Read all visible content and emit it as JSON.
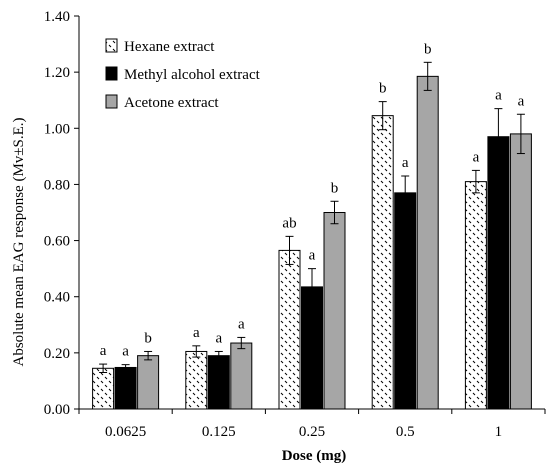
{
  "chart_data": {
    "type": "bar",
    "xlabel": "Dose (mg)",
    "ylabel": "Absolute mean EAG response (Mv±S.E.)",
    "ylim": [
      0,
      1.4
    ],
    "yticks": [
      "0.00",
      "0.20",
      "0.40",
      "0.60",
      "0.80",
      "1.00",
      "1.20",
      "1.40"
    ],
    "categories": [
      "0.0625",
      "0.125",
      "0.25",
      "0.5",
      "1"
    ],
    "legend_position": "top-left",
    "grid": false,
    "series": [
      {
        "name": "Hexane extract",
        "pattern": "dotted-white",
        "values": [
          0.145,
          0.205,
          0.565,
          1.045,
          0.81
        ],
        "errors": [
          0.015,
          0.02,
          0.05,
          0.05,
          0.04
        ],
        "labels": [
          "a",
          "a",
          "ab",
          "b",
          "a"
        ]
      },
      {
        "name": "Methyl alcohol extract",
        "color": "#000000",
        "values": [
          0.148,
          0.19,
          0.435,
          0.77,
          0.97
        ],
        "errors": [
          0.01,
          0.015,
          0.065,
          0.06,
          0.1
        ],
        "labels": [
          "a",
          "a",
          "a",
          "a",
          "a"
        ]
      },
      {
        "name": "Acetone extract",
        "color": "#a6a6a6",
        "values": [
          0.19,
          0.235,
          0.7,
          1.185,
          0.98
        ],
        "errors": [
          0.015,
          0.02,
          0.04,
          0.05,
          0.07
        ],
        "labels": [
          "b",
          "a",
          "b",
          "b",
          "a"
        ]
      }
    ]
  }
}
